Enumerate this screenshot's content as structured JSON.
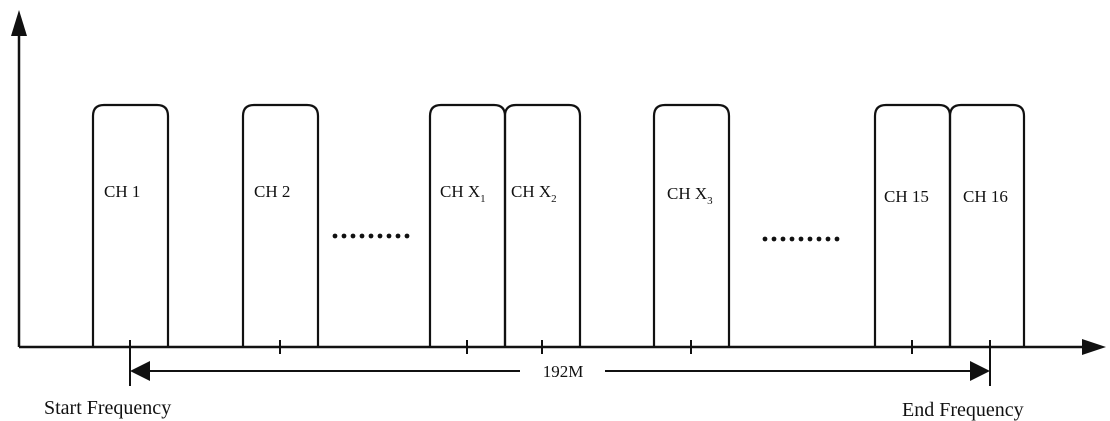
{
  "diagram": {
    "channels": [
      {
        "id": "ch1",
        "label": "CH 1",
        "sub": ""
      },
      {
        "id": "ch2",
        "label": "CH 2",
        "sub": ""
      },
      {
        "id": "chx1",
        "label": "CH X",
        "sub": "1"
      },
      {
        "id": "chx2",
        "label": "CH X",
        "sub": "2"
      },
      {
        "id": "chx3",
        "label": "CH X",
        "sub": "3"
      },
      {
        "id": "ch15",
        "label": "CH 15",
        "sub": ""
      },
      {
        "id": "ch16",
        "label": "CH 16",
        "sub": ""
      }
    ],
    "span_label": "192M",
    "start_label": "Start Frequency",
    "end_label": "End Frequency",
    "ellipsis": "•••••••••"
  }
}
